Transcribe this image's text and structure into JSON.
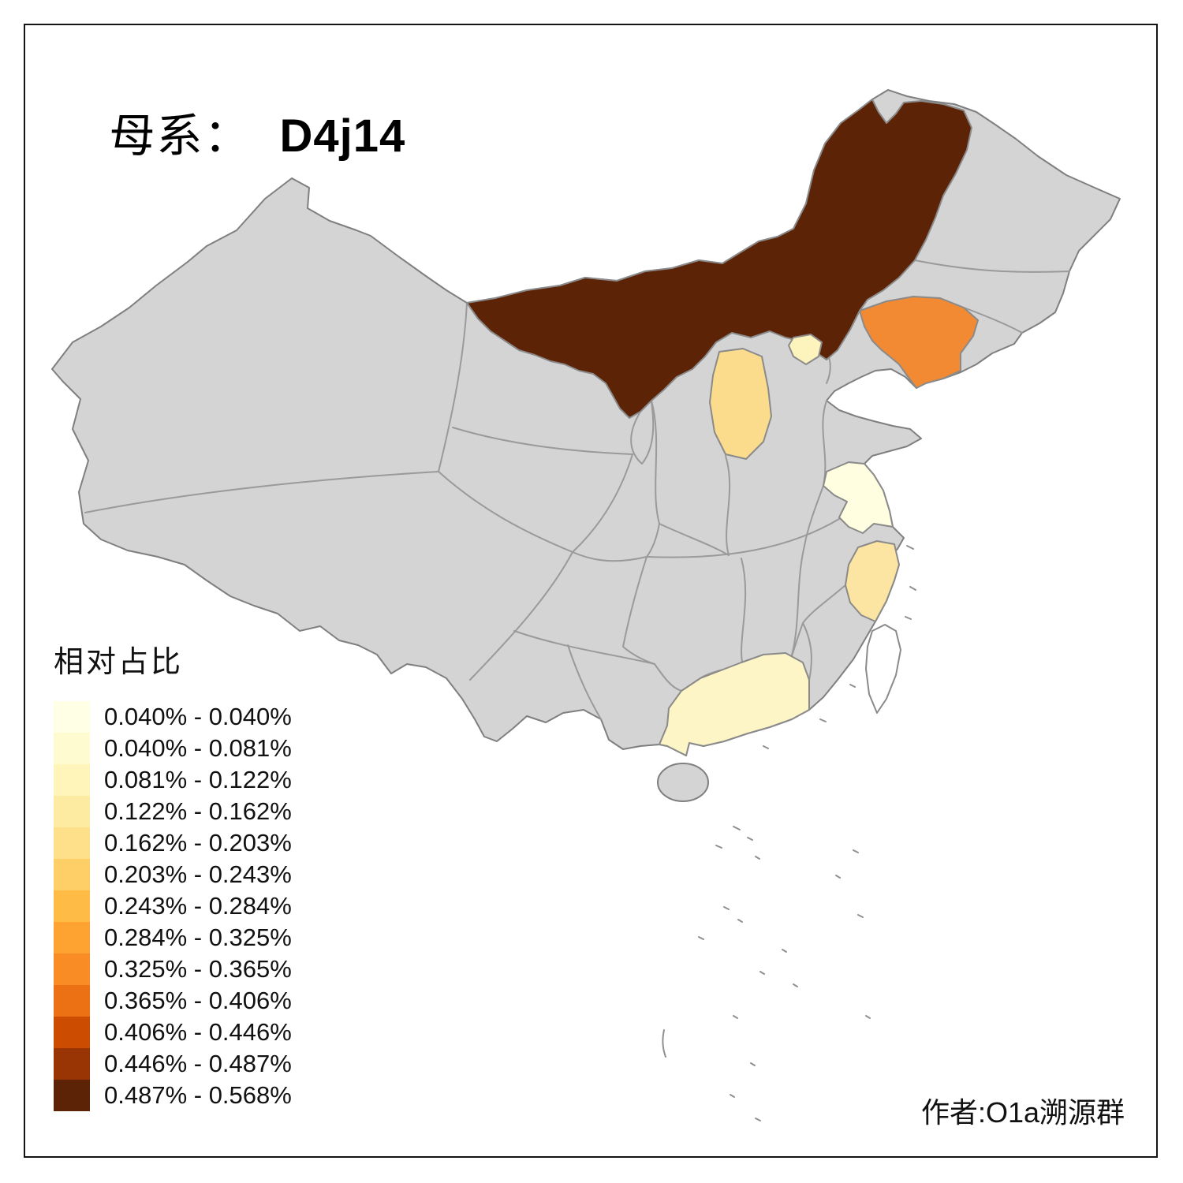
{
  "title": {
    "lineage_label": "母系：",
    "haplogroup": "D4j14"
  },
  "legend": {
    "title": "相对占比",
    "items": [
      {
        "label": "0.040% - 0.040%",
        "color": "#FFFFE5"
      },
      {
        "label": "0.040% - 0.081%",
        "color": "#FFFBD0"
      },
      {
        "label": "0.081% - 0.122%",
        "color": "#FFF5BA"
      },
      {
        "label": "0.122% - 0.162%",
        "color": "#FEEBA2"
      },
      {
        "label": "0.162% - 0.203%",
        "color": "#FEDF8A"
      },
      {
        "label": "0.203% - 0.243%",
        "color": "#FECF66"
      },
      {
        "label": "0.243% - 0.284%",
        "color": "#FEBB46"
      },
      {
        "label": "0.284% - 0.325%",
        "color": "#FEA331"
      },
      {
        "label": "0.325% - 0.365%",
        "color": "#F98C24"
      },
      {
        "label": "0.365% - 0.406%",
        "color": "#EC7014"
      },
      {
        "label": "0.406% - 0.446%",
        "color": "#CC4C02"
      },
      {
        "label": "0.446% - 0.487%",
        "color": "#993404"
      },
      {
        "label": "0.487% - 0.568%",
        "color": "#5C2306"
      }
    ]
  },
  "map": {
    "land_color": "#D4D4D4",
    "no_data_color": "#FFFFFF",
    "provinces": [
      {
        "name": "Inner Mongolia",
        "color": "#5C2306"
      },
      {
        "name": "Liaoning",
        "color": "#F18A33"
      },
      {
        "name": "Shanxi",
        "color": "#FBDC8C"
      },
      {
        "name": "Beijing",
        "color": "#FDF3BC"
      },
      {
        "name": "Jiangsu",
        "color": "#FFFEE0"
      },
      {
        "name": "Zhejiang",
        "color": "#FCE5A3"
      },
      {
        "name": "Guangdong",
        "color": "#FDF5C6"
      }
    ]
  },
  "footer": {
    "author": "作者:O1a溯源群"
  }
}
